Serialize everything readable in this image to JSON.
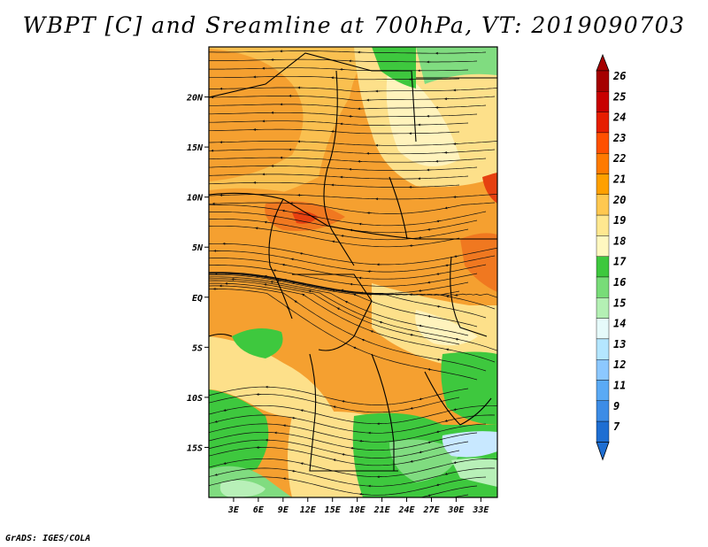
{
  "title": "WBPT [C] and Sreamline at 700hPa, VT: 2019090703",
  "credit": "GrADS: IGES/COLA",
  "map": {
    "lon_range": [
      0,
      35
    ],
    "lat_range": [
      -20,
      25
    ],
    "lat_ticks": [
      {
        "value": 20,
        "label": "20N"
      },
      {
        "value": 15,
        "label": "15N"
      },
      {
        "value": 10,
        "label": "10N"
      },
      {
        "value": 5,
        "label": "5N"
      },
      {
        "value": 0,
        "label": "EQ"
      },
      {
        "value": -5,
        "label": "5S"
      },
      {
        "value": -10,
        "label": "10S"
      },
      {
        "value": -15,
        "label": "15S"
      }
    ],
    "lon_ticks": [
      {
        "value": 3,
        "label": "3E"
      },
      {
        "value": 6,
        "label": "6E"
      },
      {
        "value": 9,
        "label": "9E"
      },
      {
        "value": 12,
        "label": "12E"
      },
      {
        "value": 15,
        "label": "15E"
      },
      {
        "value": 18,
        "label": "18E"
      },
      {
        "value": 21,
        "label": "21E"
      },
      {
        "value": 24,
        "label": "24E"
      },
      {
        "value": 27,
        "label": "27E"
      },
      {
        "value": 30,
        "label": "30E"
      },
      {
        "value": 33,
        "label": "33E"
      }
    ]
  },
  "colorbar": {
    "labels": [
      "26",
      "25",
      "24",
      "23",
      "22",
      "21",
      "20",
      "19",
      "18",
      "17",
      "16",
      "15",
      "14",
      "13",
      "12",
      "11",
      "9",
      "7"
    ],
    "colors": [
      "#a50000",
      "#c80000",
      "#e61e00",
      "#ff5000",
      "#ff7a00",
      "#ffa000",
      "#ffc850",
      "#ffe890",
      "#fff8c0",
      "#3ec83e",
      "#78dc78",
      "#b4f0b4",
      "#e6fafa",
      "#b4e6ff",
      "#8cc8ff",
      "#5aaaf5",
      "#3c8ce6",
      "#1e6ed2"
    ],
    "top_arrow_color": "#a50000",
    "bottom_arrow_color": "#1e6ed2"
  },
  "field_colors": {
    "orange_dark": "#f07820",
    "orange": "#f5a030",
    "orange_light": "#fac050",
    "yellow": "#fde08a",
    "cream": "#fff3bd",
    "green": "#3ec83e",
    "green_light": "#80dc80",
    "green_pale": "#b8f0b8",
    "blue_pale": "#c8e8ff",
    "red": "#e64010"
  }
}
